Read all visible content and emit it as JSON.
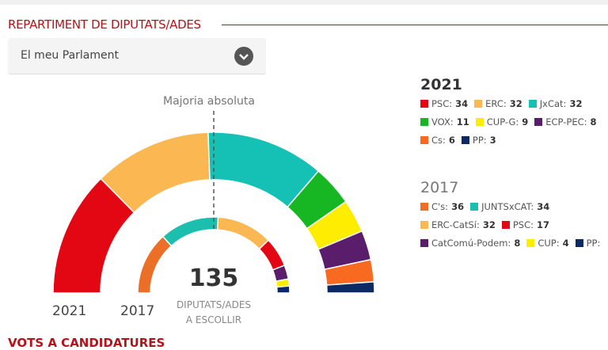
{
  "header": {
    "title": "REPARTIMENT DE DIPUTATS/ADES",
    "next_section": "VOTS A CANDIDATURES"
  },
  "selector": {
    "value": "El meu Parlament"
  },
  "chart": {
    "majority_label": "Majoria absoluta",
    "total": "135",
    "total_label_1": "DIPUTATS/ADES",
    "total_label_2": "A ESCOLLIR",
    "label_outer": "2021",
    "label_inner": "2017"
  },
  "chart_data": {
    "type": "semicircle-parliament",
    "total_seats": 135,
    "majority": 68,
    "series": [
      {
        "name": "2021",
        "parties": [
          {
            "name": "PSC",
            "seats": 34,
            "color": "#e30613"
          },
          {
            "name": "ERC",
            "seats": 32,
            "color": "#fbb752"
          },
          {
            "name": "JxCat",
            "seats": 32,
            "color": "#15c1b4"
          },
          {
            "name": "VOX",
            "seats": 11,
            "color": "#17b623"
          },
          {
            "name": "CUP-G",
            "seats": 9,
            "color": "#ffed00"
          },
          {
            "name": "ECP-PEC",
            "seats": 8,
            "color": "#5a1d6b"
          },
          {
            "name": "Cs",
            "seats": 6,
            "color": "#f86a1f"
          },
          {
            "name": "PP",
            "seats": 3,
            "color": "#0b2a63"
          }
        ]
      },
      {
        "name": "2017",
        "parties": [
          {
            "name": "C's",
            "seats": 36,
            "color": "#eb6f26"
          },
          {
            "name": "JUNTSxCAT",
            "seats": 34,
            "color": "#1cbfae"
          },
          {
            "name": "ERC-CatSí",
            "seats": 32,
            "color": "#fbb752"
          },
          {
            "name": "PSC",
            "seats": 17,
            "color": "#e30613"
          },
          {
            "name": "CatComú-Podem",
            "seats": 8,
            "color": "#5a1d6b"
          },
          {
            "name": "CUP",
            "seats": 4,
            "color": "#ffed00"
          },
          {
            "name": "PP",
            "seats": 4,
            "color": "#0b2a63",
            "hide_value": true
          }
        ]
      }
    ]
  }
}
